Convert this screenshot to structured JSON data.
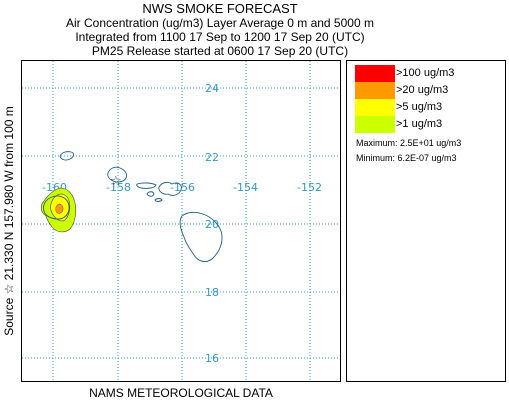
{
  "title": {
    "main": "NWS SMOKE FORECAST",
    "line1": "Air Concentration (ug/m3) Layer Average    0 m and  5000 m",
    "line2": "Integrated from 1100 17 Sep to 1200 17 Sep 20 (UTC)",
    "line3": "PM25 Release started at 0600 17 Sep 20 (UTC)"
  },
  "side_label": "Source ☆  21.330  N 157.980  W      from  100 m",
  "footer": "NAMS METEOROLOGICAL DATA",
  "legend": {
    "items": [
      {
        "label": ">100 ug/m3",
        "color": "#ff0000"
      },
      {
        "label": ">20 ug/m3",
        "color": "#ff9900"
      },
      {
        "label": ">5 ug/m3",
        "color": "#ffff00"
      },
      {
        "label": ">1 ug/m3",
        "color": "#ccff00"
      }
    ],
    "maximum": "Maximum: 2.5E+01 ug/m3",
    "minimum": "Minimum: 6.2E-07 ug/m3"
  },
  "map": {
    "lat_labels": [
      "24",
      "22",
      "20",
      "18",
      "16"
    ],
    "lon_labels": [
      "-160",
      "-158",
      "-156",
      "-154",
      "-152"
    ],
    "grid_color": "#3399cc",
    "coast_color": "#1f5f8b",
    "source_marker_icon": "star-icon",
    "source": {
      "lat": 21.33,
      "lon": -157.98
    }
  }
}
